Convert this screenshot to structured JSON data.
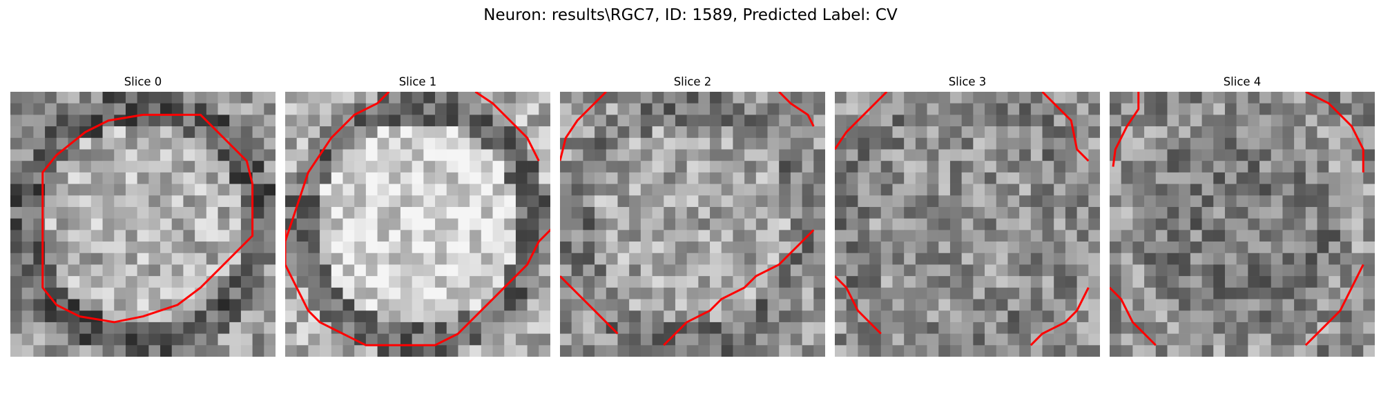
{
  "figure": {
    "title": "Neuron: results\\RGC7, ID: 1589, Predicted Label: CV",
    "contour_color": "#ff0000"
  },
  "slices": [
    {
      "title": "Slice 0",
      "base_tone": 150,
      "center_tone": 175,
      "rim_tone": 95,
      "seed": 11,
      "contour": [
        [
          11.5,
          2
        ],
        [
          16.5,
          2
        ],
        [
          18,
          3.5
        ],
        [
          20.5,
          6
        ],
        [
          21,
          8
        ],
        [
          21,
          12.5
        ],
        [
          19,
          14.5
        ],
        [
          16.5,
          17
        ],
        [
          14.5,
          18.5
        ],
        [
          11.5,
          19.5
        ],
        [
          9,
          20
        ],
        [
          6,
          19.5
        ],
        [
          4,
          18.5
        ],
        [
          2.8,
          17
        ],
        [
          2.8,
          11
        ],
        [
          2.8,
          7
        ],
        [
          4,
          5.5
        ],
        [
          6.5,
          3.5
        ],
        [
          8.5,
          2.5
        ],
        [
          11.5,
          2
        ]
      ]
    },
    {
      "title": "Slice 1",
      "base_tone": 175,
      "center_tone": 215,
      "rim_tone": 110,
      "seed": 23,
      "contour": [
        [
          9,
          0
        ],
        [
          8,
          1
        ],
        [
          6,
          2
        ],
        [
          4,
          4
        ],
        [
          2,
          7
        ],
        [
          1,
          10
        ],
        [
          0,
          13
        ],
        [
          0,
          15
        ],
        [
          1,
          17
        ],
        [
          2,
          19
        ],
        [
          3,
          20
        ],
        [
          5,
          21
        ],
        [
          7,
          22
        ],
        [
          9,
          22
        ],
        [
          11,
          22
        ],
        [
          13,
          22
        ],
        [
          15,
          21
        ],
        [
          17,
          19
        ],
        [
          18,
          18
        ],
        [
          19,
          17
        ],
        [
          20,
          16
        ],
        [
          21,
          15
        ],
        [
          22,
          13
        ],
        [
          23,
          12
        ],
        [
          24,
          11
        ],
        [
          25,
          10
        ],
        [
          26,
          9
        ],
        [
          27,
          8
        ],
        [
          28,
          8
        ]
      ]
    },
    {
      "title": "Slice 2",
      "base_tone": 150,
      "center_tone": 165,
      "rim_tone": 120,
      "seed": 37,
      "contour": [
        [
          4,
          0
        ],
        [
          3,
          1
        ],
        [
          1.5,
          2.5
        ],
        [
          0.5,
          4
        ],
        [
          0,
          6
        ]
      ]
    },
    {
      "title": "Slice 3",
      "base_tone": 145,
      "center_tone": 145,
      "rim_tone": 130,
      "seed": 51,
      "contour": [
        [
          4.5,
          0
        ],
        [
          3,
          1.5
        ],
        [
          1,
          3.5
        ],
        [
          0,
          5
        ]
      ]
    },
    {
      "title": "Slice 4",
      "base_tone": 140,
      "center_tone": 125,
      "rim_tone": 150,
      "seed": 67,
      "contour": [
        [
          2.5,
          0
        ],
        [
          2.5,
          1.5
        ],
        [
          1.5,
          3
        ],
        [
          0.5,
          5
        ],
        [
          0.3,
          6.5
        ]
      ]
    }
  ],
  "extra_contours": [
    [],
    [
      [
        16.5,
        0
      ],
      [
        18,
        1
      ],
      [
        20,
        3
      ],
      [
        21,
        4
      ],
      [
        22,
        6
      ]
    ],
    [
      [
        19,
        0
      ],
      [
        20,
        1
      ],
      [
        21.5,
        2
      ],
      [
        22,
        3
      ]
    ],
    [
      [
        18,
        0
      ],
      [
        19.5,
        1.5
      ],
      [
        20.5,
        2.5
      ],
      [
        21,
        5
      ],
      [
        22,
        6
      ]
    ],
    [
      [
        17,
        0
      ],
      [
        19,
        1
      ],
      [
        21,
        3
      ],
      [
        22,
        5
      ],
      [
        22,
        7
      ]
    ]
  ],
  "lower_contours": [
    [],
    [
      [
        0,
        12
      ],
      [
        0,
        13
      ]
    ],
    [
      [
        22,
        12
      ],
      [
        21,
        13
      ],
      [
        20,
        14
      ],
      [
        19,
        15
      ],
      [
        17,
        16
      ],
      [
        16,
        17
      ],
      [
        14,
        18
      ],
      [
        13,
        19
      ],
      [
        11,
        20
      ],
      [
        10,
        21
      ],
      [
        9,
        22
      ]
    ],
    [
      [
        0,
        16
      ],
      [
        1,
        17
      ],
      [
        2,
        19
      ],
      [
        3,
        20
      ],
      [
        4,
        21
      ]
    ],
    [
      [
        0,
        17
      ],
      [
        1,
        18
      ],
      [
        2,
        20
      ],
      [
        3,
        21
      ],
      [
        4,
        22
      ]
    ]
  ],
  "bottom_right_contours": [
    [],
    [],
    [
      [
        0,
        16
      ],
      [
        1.5,
        17.5
      ],
      [
        3,
        19
      ],
      [
        4,
        20
      ],
      [
        5,
        21
      ]
    ],
    [
      [
        22,
        17
      ],
      [
        21,
        19
      ],
      [
        20,
        20
      ],
      [
        18,
        21
      ],
      [
        17,
        22
      ]
    ],
    [
      [
        22,
        15
      ],
      [
        21,
        17
      ],
      [
        20,
        19
      ],
      [
        19,
        20
      ],
      [
        18,
        21
      ],
      [
        17,
        22
      ]
    ]
  ]
}
